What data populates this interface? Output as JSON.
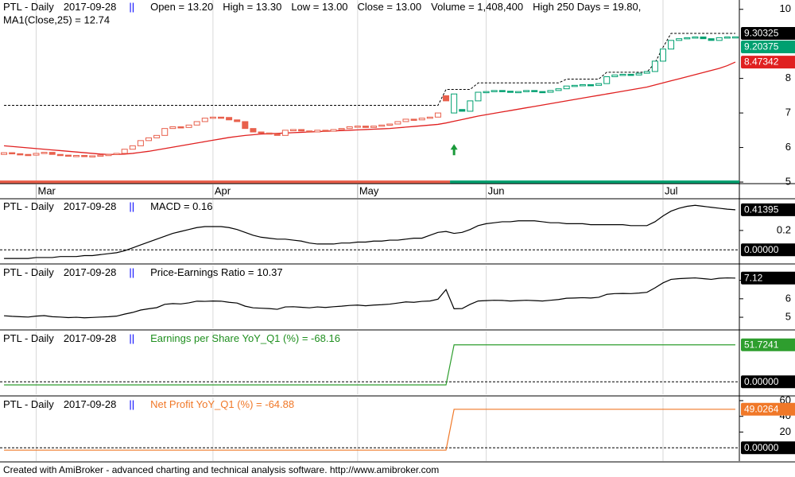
{
  "chart_data": [
    {
      "type": "candlestick",
      "header": [
        "PTL - Daily",
        "2017-09-28",
        "||",
        "Open = 13.20",
        "High = 13.30",
        "Low = 13.00",
        "Close = 13.00",
        "Volume = 1,408,400",
        "High 250 Days = 19.80,"
      ],
      "subtitle": "MA1(Close,25) = 12.74",
      "categories": [
        null,
        null,
        null,
        null,
        "Mar",
        null,
        null,
        null,
        null,
        null,
        null,
        null,
        null,
        null,
        null,
        null,
        null,
        null,
        null,
        null,
        null,
        null,
        null,
        null,
        null,
        null,
        "Apr",
        null,
        null,
        null,
        null,
        null,
        null,
        null,
        null,
        null,
        null,
        null,
        null,
        null,
        null,
        null,
        null,
        null,
        "May",
        null,
        null,
        null,
        null,
        null,
        null,
        null,
        null,
        null,
        null,
        null,
        null,
        null,
        null,
        null,
        "Jun",
        null,
        null,
        null,
        null,
        null,
        null,
        null,
        null,
        null,
        null,
        null,
        null,
        null,
        null,
        null,
        null,
        null,
        null,
        null,
        null,
        null,
        "Jul",
        null,
        null,
        null,
        null,
        null,
        null,
        null,
        null,
        null
      ],
      "open": [
        5.8,
        5.85,
        5.82,
        5.8,
        5.78,
        5.83,
        5.86,
        5.8,
        5.78,
        5.75,
        5.77,
        5.74,
        5.76,
        5.78,
        5.8,
        5.83,
        5.95,
        6.05,
        6.2,
        6.28,
        6.35,
        6.55,
        6.6,
        6.58,
        6.65,
        6.75,
        6.85,
        6.88,
        6.87,
        6.8,
        6.75,
        6.55,
        6.45,
        6.42,
        6.4,
        6.35,
        6.5,
        6.52,
        6.48,
        6.45,
        6.5,
        6.47,
        6.52,
        6.55,
        6.6,
        6.62,
        6.58,
        6.62,
        6.65,
        6.68,
        6.75,
        6.82,
        6.8,
        6.85,
        6.88,
        7.5,
        7.0,
        7.1,
        7.05,
        7.35,
        7.6,
        7.62,
        7.65,
        7.63,
        7.6,
        7.62,
        7.65,
        7.62,
        7.6,
        7.65,
        7.7,
        7.78,
        7.8,
        7.82,
        7.8,
        7.85,
        8.05,
        8.1,
        8.12,
        8.1,
        8.15,
        8.2,
        8.5,
        8.85,
        9.1,
        9.15,
        9.18,
        9.2,
        9.15,
        9.1,
        9.18,
        9.2
      ],
      "close": [
        5.85,
        5.82,
        5.8,
        5.78,
        5.83,
        5.86,
        5.8,
        5.78,
        5.75,
        5.77,
        5.74,
        5.76,
        5.78,
        5.8,
        5.83,
        5.95,
        6.05,
        6.2,
        6.28,
        6.35,
        6.55,
        6.6,
        6.58,
        6.65,
        6.75,
        6.85,
        6.88,
        6.87,
        6.8,
        6.75,
        6.55,
        6.45,
        6.42,
        6.4,
        6.35,
        6.5,
        6.52,
        6.48,
        6.45,
        6.5,
        6.47,
        6.52,
        6.55,
        6.6,
        6.62,
        6.58,
        6.62,
        6.65,
        6.68,
        6.75,
        6.82,
        6.8,
        6.85,
        6.88,
        7.0,
        7.35,
        7.55,
        7.05,
        7.35,
        7.6,
        7.62,
        7.65,
        7.63,
        7.6,
        7.62,
        7.65,
        7.62,
        7.6,
        7.65,
        7.7,
        7.78,
        7.8,
        7.82,
        7.8,
        7.85,
        8.05,
        8.1,
        8.12,
        8.1,
        8.15,
        8.2,
        8.5,
        8.85,
        9.1,
        9.15,
        9.18,
        9.2,
        9.15,
        9.1,
        9.18,
        9.2,
        9.20375
      ],
      "candle_colors": [
        "#e8604c",
        "#00a070"
      ],
      "ma": {
        "color": "#e02020",
        "values": [
          6.05,
          6.03,
          6.01,
          5.99,
          5.97,
          5.95,
          5.93,
          5.91,
          5.89,
          5.87,
          5.85,
          5.83,
          5.81,
          5.8,
          5.8,
          5.81,
          5.83,
          5.86,
          5.89,
          5.93,
          5.97,
          6.01,
          6.05,
          6.09,
          6.13,
          6.17,
          6.21,
          6.25,
          6.29,
          6.32,
          6.35,
          6.37,
          6.39,
          6.4,
          6.41,
          6.42,
          6.43,
          6.44,
          6.45,
          6.46,
          6.47,
          6.48,
          6.49,
          6.5,
          6.51,
          6.52,
          6.53,
          6.54,
          6.55,
          6.57,
          6.59,
          6.61,
          6.63,
          6.65,
          6.67,
          6.71,
          6.76,
          6.81,
          6.86,
          6.91,
          6.95,
          6.99,
          7.03,
          7.07,
          7.11,
          7.15,
          7.19,
          7.23,
          7.27,
          7.31,
          7.35,
          7.39,
          7.43,
          7.47,
          7.51,
          7.55,
          7.59,
          7.63,
          7.67,
          7.71,
          7.75,
          7.81,
          7.87,
          7.93,
          7.99,
          8.05,
          8.11,
          8.17,
          8.23,
          8.29,
          8.37,
          8.47342
        ]
      },
      "stop": {
        "color": "#000000",
        "values": [
          7.22,
          7.22,
          7.22,
          7.22,
          7.22,
          7.22,
          7.22,
          7.22,
          7.22,
          7.22,
          7.22,
          7.22,
          7.22,
          7.22,
          7.22,
          7.22,
          7.22,
          7.22,
          7.22,
          7.22,
          7.22,
          7.22,
          7.22,
          7.22,
          7.22,
          7.22,
          7.22,
          7.22,
          7.22,
          7.22,
          7.22,
          7.22,
          7.22,
          7.22,
          7.22,
          7.22,
          7.22,
          7.22,
          7.22,
          7.22,
          7.22,
          7.22,
          7.22,
          7.22,
          7.22,
          7.22,
          7.22,
          7.22,
          7.22,
          7.22,
          7.22,
          7.22,
          7.22,
          7.22,
          7.22,
          7.68,
          7.68,
          7.68,
          7.68,
          7.87,
          7.87,
          7.87,
          7.87,
          7.87,
          7.87,
          7.87,
          7.87,
          7.87,
          7.87,
          7.87,
          7.98,
          7.98,
          7.98,
          7.98,
          7.98,
          8.18,
          8.18,
          8.18,
          8.18,
          8.18,
          8.18,
          8.45,
          8.9,
          9.30325,
          9.30325,
          9.30325,
          9.30325,
          9.30325,
          9.30325,
          9.30325,
          9.30325,
          9.30325
        ]
      },
      "buy": {
        "color": "#1a9a3a",
        "values": [
          null,
          null,
          null,
          null,
          null,
          null,
          null,
          null,
          null,
          null,
          null,
          null,
          null,
          null,
          null,
          null,
          null,
          null,
          null,
          null,
          null,
          null,
          null,
          null,
          null,
          null,
          null,
          null,
          null,
          null,
          null,
          null,
          null,
          null,
          null,
          null,
          null,
          null,
          null,
          null,
          null,
          null,
          null,
          null,
          null,
          null,
          null,
          null,
          null,
          null,
          null,
          null,
          null,
          null,
          null,
          null,
          6.1,
          null,
          null,
          null,
          null,
          null,
          null,
          null,
          null,
          null,
          null,
          null,
          null,
          null,
          null,
          null,
          null,
          null,
          null,
          null,
          null,
          null,
          null,
          null,
          null,
          null,
          null,
          null,
          null,
          null,
          null,
          null,
          null,
          null,
          null,
          null
        ]
      },
      "ylim": [
        5,
        10.27
      ],
      "yticks": [
        5,
        6,
        7,
        8,
        10
      ]
    },
    {
      "type": "line",
      "header": [
        "PTL - Daily",
        "2017-09-28",
        "||"
      ],
      "title": "MACD = 0.16",
      "title_color": "#000000",
      "color": "#000000",
      "values": [
        -0.09,
        -0.09,
        -0.09,
        -0.09,
        -0.08,
        -0.08,
        -0.08,
        -0.07,
        -0.07,
        -0.07,
        -0.06,
        -0.06,
        -0.05,
        -0.04,
        -0.03,
        -0.01,
        0.02,
        0.05,
        0.08,
        0.11,
        0.14,
        0.17,
        0.19,
        0.21,
        0.23,
        0.24,
        0.24,
        0.24,
        0.23,
        0.21,
        0.18,
        0.15,
        0.13,
        0.12,
        0.11,
        0.11,
        0.1,
        0.09,
        0.07,
        0.06,
        0.06,
        0.06,
        0.07,
        0.07,
        0.08,
        0.08,
        0.09,
        0.09,
        0.1,
        0.1,
        0.11,
        0.12,
        0.12,
        0.15,
        0.18,
        0.19,
        0.17,
        0.18,
        0.21,
        0.25,
        0.27,
        0.28,
        0.29,
        0.29,
        0.3,
        0.3,
        0.3,
        0.29,
        0.28,
        0.28,
        0.27,
        0.27,
        0.27,
        0.26,
        0.26,
        0.26,
        0.26,
        0.26,
        0.25,
        0.25,
        0.25,
        0.29,
        0.35,
        0.4,
        0.43,
        0.45,
        0.46,
        0.45,
        0.44,
        0.43,
        0.42,
        0.41395
      ],
      "ylim": [
        -0.13,
        0.52
      ],
      "yticks": [
        0.2
      ],
      "levels": [
        {
          "value": 0,
          "label": "0.00000"
        }
      ]
    },
    {
      "type": "line",
      "header": [
        "PTL - Daily",
        "2017-09-28",
        "||"
      ],
      "title": "Price-Earnings Ratio = 10.37",
      "title_color": "#000000",
      "color": "#000000",
      "values": [
        5.08,
        5.05,
        5.03,
        5.01,
        5.06,
        5.09,
        5.03,
        5.01,
        4.98,
        5.0,
        4.97,
        4.99,
        5.01,
        5.03,
        5.06,
        5.17,
        5.26,
        5.39,
        5.46,
        5.52,
        5.7,
        5.74,
        5.72,
        5.78,
        5.87,
        5.86,
        5.88,
        5.87,
        5.81,
        5.77,
        5.6,
        5.51,
        5.49,
        5.47,
        5.43,
        5.56,
        5.57,
        5.54,
        5.51,
        5.56,
        5.53,
        5.57,
        5.6,
        5.64,
        5.66,
        5.62,
        5.66,
        5.68,
        5.71,
        5.77,
        5.83,
        5.81,
        5.86,
        5.88,
        5.98,
        6.5,
        5.46,
        5.47,
        5.7,
        5.88,
        5.9,
        5.92,
        5.91,
        5.88,
        5.9,
        5.92,
        5.9,
        5.88,
        5.92,
        5.96,
        6.03,
        6.04,
        6.06,
        6.04,
        6.08,
        6.24,
        6.28,
        6.29,
        6.28,
        6.31,
        6.35,
        6.59,
        6.86,
        7.05,
        7.09,
        7.11,
        7.13,
        7.09,
        7.05,
        7.11,
        7.13,
        7.12
      ],
      "ylim": [
        4.4,
        7.8
      ],
      "yticks": [
        5,
        6,
        7
      ]
    },
    {
      "type": "line",
      "header": [
        "PTL - Daily",
        "2017-09-28",
        "||"
      ],
      "title": "Earnings per Share YoY_Q1 (%) = -68.16",
      "title_color": "#1f8f1f",
      "color": "#2e9e2e",
      "values": [
        -4.4,
        -4.4,
        -4.4,
        -4.4,
        -4.4,
        -4.4,
        -4.4,
        -4.4,
        -4.4,
        -4.4,
        -4.4,
        -4.4,
        -4.4,
        -4.4,
        -4.4,
        -4.4,
        -4.4,
        -4.4,
        -4.4,
        -4.4,
        -4.4,
        -4.4,
        -4.4,
        -4.4,
        -4.4,
        -4.4,
        -4.4,
        -4.4,
        -4.4,
        -4.4,
        -4.4,
        -4.4,
        -4.4,
        -4.4,
        -4.4,
        -4.4,
        -4.4,
        -4.4,
        -4.4,
        -4.4,
        -4.4,
        -4.4,
        -4.4,
        -4.4,
        -4.4,
        -4.4,
        -4.4,
        -4.4,
        -4.4,
        -4.4,
        -4.4,
        -4.4,
        -4.4,
        -4.4,
        -4.4,
        -4.4,
        51.7241,
        51.7241,
        51.7241,
        51.7241,
        51.7241,
        51.7241,
        51.7241,
        51.7241,
        51.7241,
        51.7241,
        51.7241,
        51.7241,
        51.7241,
        51.7241,
        51.7241,
        51.7241,
        51.7241,
        51.7241,
        51.7241,
        51.7241,
        51.7241,
        51.7241,
        51.7241,
        51.7241,
        51.7241,
        51.7241,
        51.7241,
        51.7241,
        51.7241,
        51.7241,
        51.7241,
        51.7241,
        51.7241,
        51.7241,
        51.7241,
        51.7241
      ],
      "ylim": [
        -17.6,
        70.4
      ],
      "levels": [
        {
          "value": 0,
          "label": "0.00000"
        }
      ]
    },
    {
      "type": "line",
      "header": [
        "PTL - Daily",
        "2017-09-28",
        "||"
      ],
      "title": "Net Profit YoY_Q1 (%) = -64.88",
      "title_color": "#f07828",
      "color": "#f07828",
      "values": [
        -3,
        -3,
        -3,
        -3,
        -3,
        -3,
        -3,
        -3,
        -3,
        -3,
        -3,
        -3,
        -3,
        -3,
        -3,
        -3,
        -3,
        -3,
        -3,
        -3,
        -3,
        -3,
        -3,
        -3,
        -3,
        -3,
        -3,
        -3,
        -3,
        -3,
        -3,
        -3,
        -3,
        -3,
        -3,
        -3,
        -3,
        -3,
        -3,
        -3,
        -3,
        -3,
        -3,
        -3,
        -3,
        -3,
        -3,
        -3,
        -3,
        -3,
        -3,
        -3,
        -3,
        -3,
        -3,
        -3,
        49.0264,
        49.0264,
        49.0264,
        49.0264,
        49.0264,
        49.0264,
        49.0264,
        49.0264,
        49.0264,
        49.0264,
        49.0264,
        49.0264,
        49.0264,
        49.0264,
        49.0264,
        49.0264,
        49.0264,
        49.0264,
        49.0264,
        49.0264,
        49.0264,
        49.0264,
        49.0264,
        49.0264,
        49.0264,
        49.0264,
        49.0264,
        49.0264,
        49.0264,
        49.0264,
        49.0264,
        49.0264,
        49.0264,
        49.0264,
        49.0264,
        49.0264
      ],
      "ylim": [
        -17,
        64
      ],
      "yticks": [
        20,
        40,
        60
      ],
      "levels": [
        {
          "value": 0,
          "label": "0.00000"
        }
      ]
    }
  ],
  "footer": "Created with AmiBroker - advanced charting and technical analysis software. http://www.amibroker.com"
}
